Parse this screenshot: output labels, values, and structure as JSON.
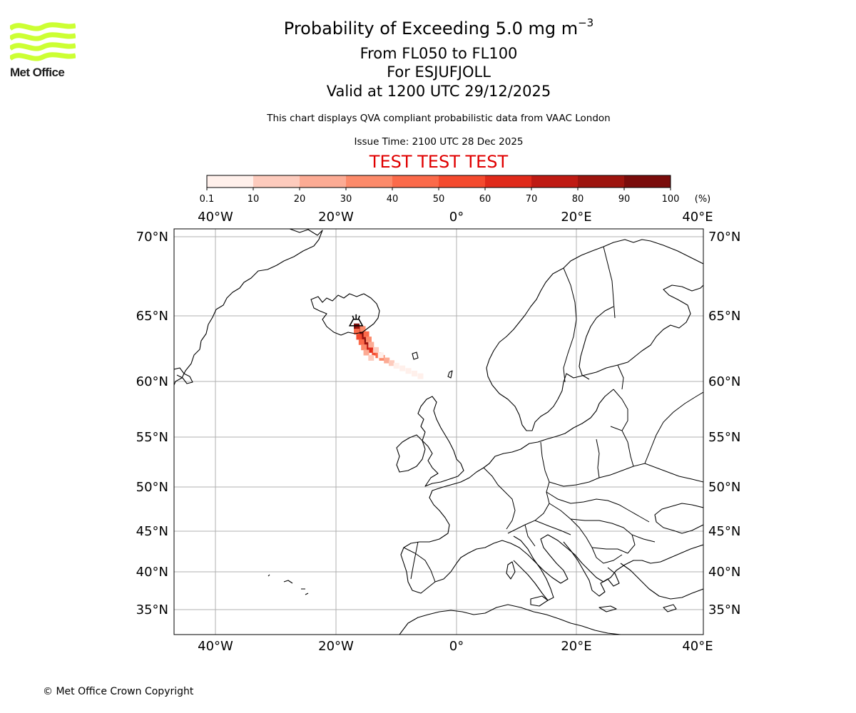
{
  "logo": {
    "text": "Met Office",
    "color": "#ccff33"
  },
  "title": {
    "line1": "Probability of Exceeding 5.0 mg m",
    "line1_superscript": "−3",
    "line2": "From FL050 to FL100",
    "line3": "For ESJUFJOLL",
    "line4": "Valid at 1200 UTC 29/12/2025"
  },
  "subtitle": "This chart displays QVA compliant probabilistic data from VAAC London",
  "issue_time": "Issue Time: 2100 UTC 28 Dec 2025",
  "test_banner": "TEST TEST TEST",
  "test_banner_color": "#e00000",
  "colorbar": {
    "ticks": [
      "0.1",
      "10",
      "20",
      "30",
      "40",
      "50",
      "60",
      "70",
      "80",
      "90",
      "100"
    ],
    "unit": "(%)",
    "colors": [
      "#fff0eb",
      "#fdcbbd",
      "#fcab94",
      "#fc8a6a",
      "#fb6a4a",
      "#f44a2e",
      "#e02a1a",
      "#bf1a13",
      "#9d140e",
      "#7a0c0b",
      "#5c0706"
    ]
  },
  "map": {
    "lon_ticks": [
      "40°W",
      "20°W",
      "0°",
      "20°E",
      "40°E"
    ],
    "lat_ticks": [
      "70°N",
      "65°N",
      "60°N",
      "55°N",
      "50°N",
      "45°N",
      "40°N",
      "35°N"
    ],
    "volcano": {
      "name": "ESJUFJOLL",
      "icon": "volcano-icon",
      "lat": 64.3,
      "lon": -16.7
    },
    "plume": {
      "description_free": true,
      "cells": [
        {
          "lat": 64.2,
          "lon": -16.6,
          "p": 90
        },
        {
          "lat": 64.0,
          "lon": -16.3,
          "p": 85
        },
        {
          "lat": 63.8,
          "lon": -16.0,
          "p": 95
        },
        {
          "lat": 63.6,
          "lon": -15.8,
          "p": 95
        },
        {
          "lat": 63.4,
          "lon": -15.6,
          "p": 90
        },
        {
          "lat": 63.2,
          "lon": -15.4,
          "p": 85
        },
        {
          "lat": 63.0,
          "lon": -15.2,
          "p": 90
        },
        {
          "lat": 62.8,
          "lon": -15.0,
          "p": 80
        },
        {
          "lat": 62.6,
          "lon": -14.6,
          "p": 70
        },
        {
          "lat": 62.4,
          "lon": -14.2,
          "p": 60
        },
        {
          "lat": 62.2,
          "lon": -13.6,
          "p": 50
        },
        {
          "lat": 62.0,
          "lon": -13.0,
          "p": 40
        },
        {
          "lat": 61.8,
          "lon": -12.4,
          "p": 30
        },
        {
          "lat": 61.6,
          "lon": -11.6,
          "p": 20
        },
        {
          "lat": 61.4,
          "lon": -10.8,
          "p": 10
        },
        {
          "lat": 61.2,
          "lon": -10.0,
          "p": 5
        },
        {
          "lat": 61.0,
          "lon": -9.0,
          "p": 2
        },
        {
          "lat": 60.8,
          "lon": -8.0,
          "p": 1
        },
        {
          "lat": 60.6,
          "lon": -7.0,
          "p": 0.5
        },
        {
          "lat": 60.4,
          "lon": -6.0,
          "p": 0.3
        },
        {
          "lat": 63.8,
          "lon": -16.6,
          "p": 40
        },
        {
          "lat": 63.4,
          "lon": -16.2,
          "p": 50
        },
        {
          "lat": 63.0,
          "lon": -15.8,
          "p": 45
        },
        {
          "lat": 62.6,
          "lon": -15.4,
          "p": 30
        },
        {
          "lat": 62.2,
          "lon": -15.0,
          "p": 20
        },
        {
          "lat": 61.8,
          "lon": -14.2,
          "p": 10
        },
        {
          "lat": 64.0,
          "lon": -15.6,
          "p": 30
        },
        {
          "lat": 63.6,
          "lon": -15.0,
          "p": 40
        },
        {
          "lat": 63.2,
          "lon": -14.6,
          "p": 30
        },
        {
          "lat": 62.8,
          "lon": -14.2,
          "p": 25
        },
        {
          "lat": 62.4,
          "lon": -13.4,
          "p": 15
        },
        {
          "lat": 62.0,
          "lon": -12.6,
          "p": 8
        }
      ]
    }
  },
  "copyright": "© Met Office Crown Copyright"
}
